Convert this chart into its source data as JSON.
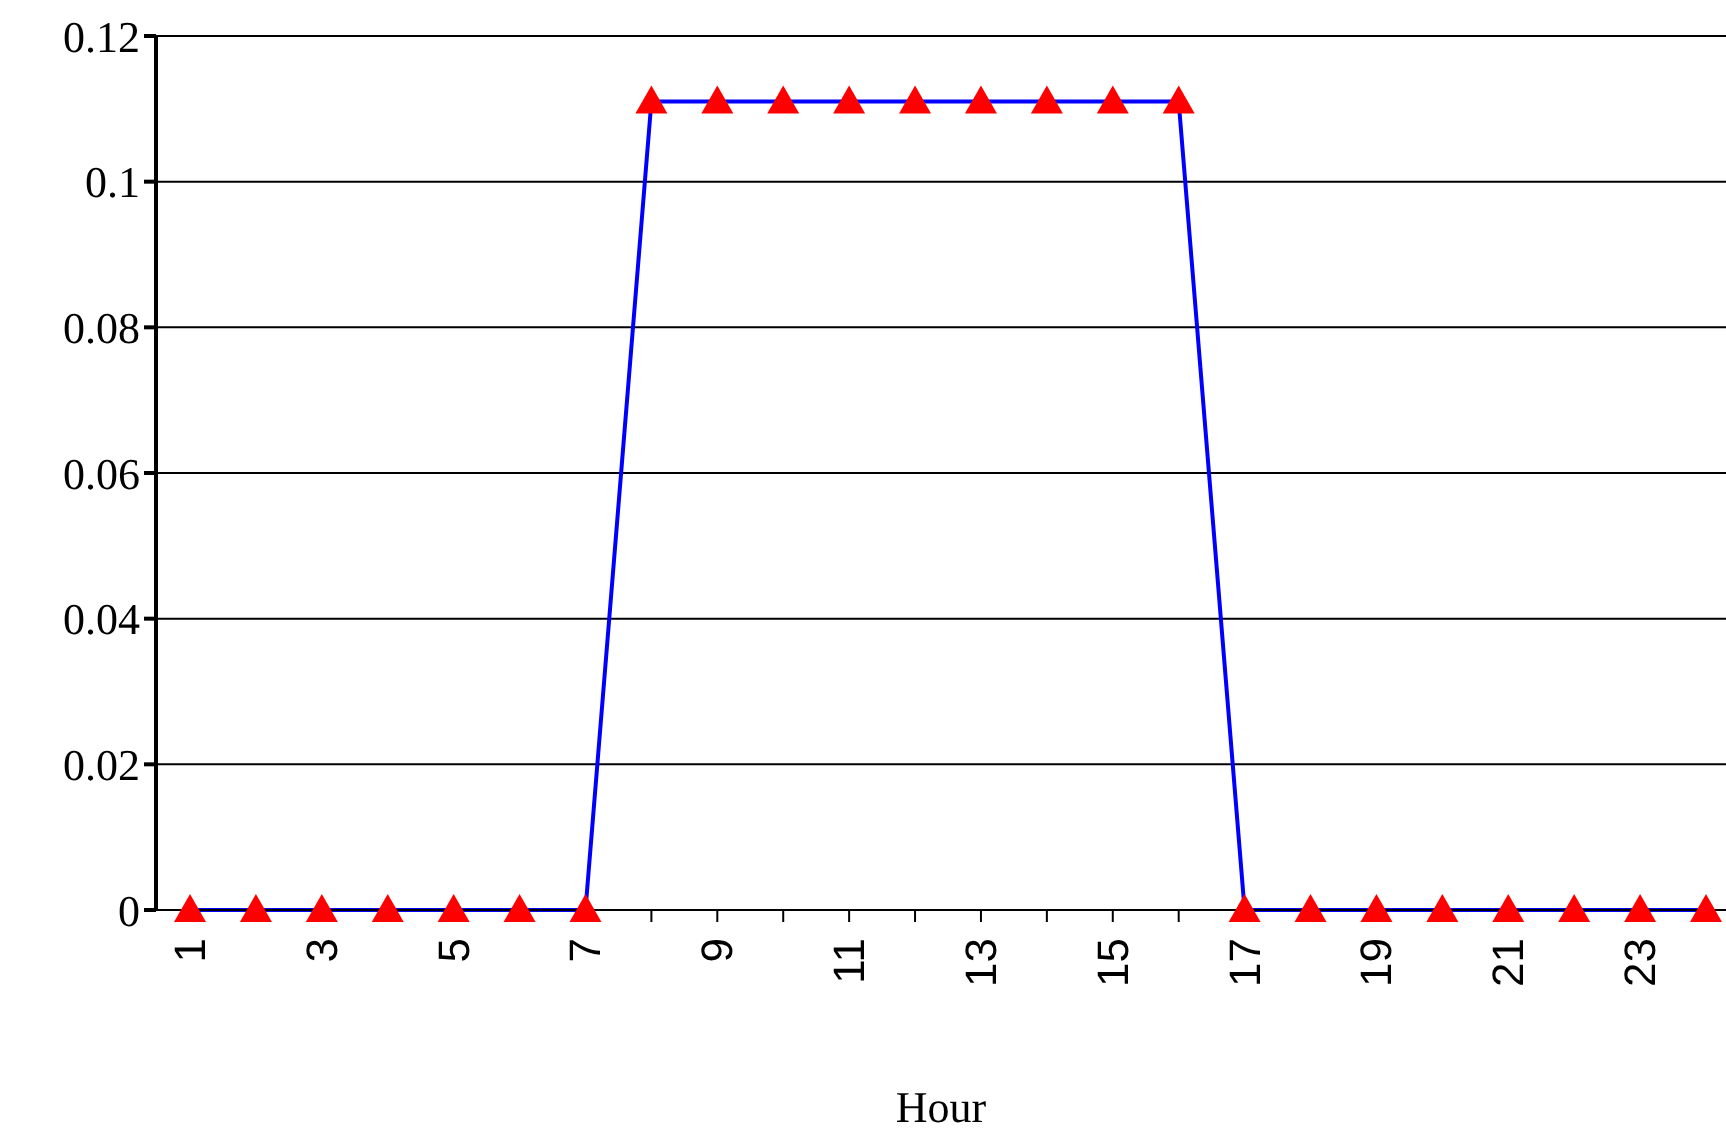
{
  "chart_data": {
    "type": "line",
    "xlabel": "Hour",
    "categories": [
      "1",
      null,
      "3",
      null,
      "5",
      null,
      "7",
      null,
      "9",
      null,
      "11",
      null,
      "13",
      null,
      "15",
      null,
      "17",
      null,
      "19",
      null,
      "21",
      null,
      "23",
      null
    ],
    "series": [
      {
        "color": "#0000ff",
        "values": [
          0,
          0,
          0,
          0,
          0,
          0,
          0,
          0.111,
          0.111,
          0.111,
          0.111,
          0.111,
          0.111,
          0.111,
          0.111,
          0.111,
          0,
          0,
          0,
          0,
          0,
          0,
          0,
          0
        ]
      }
    ],
    "marker": "triangle",
    "line_style": "solid",
    "ylim": [
      0,
      0.12
    ],
    "yticks": [
      0,
      0.02,
      0.04,
      0.06,
      0.08,
      0.1,
      0.12
    ],
    "grid": "y",
    "legend": false
  }
}
